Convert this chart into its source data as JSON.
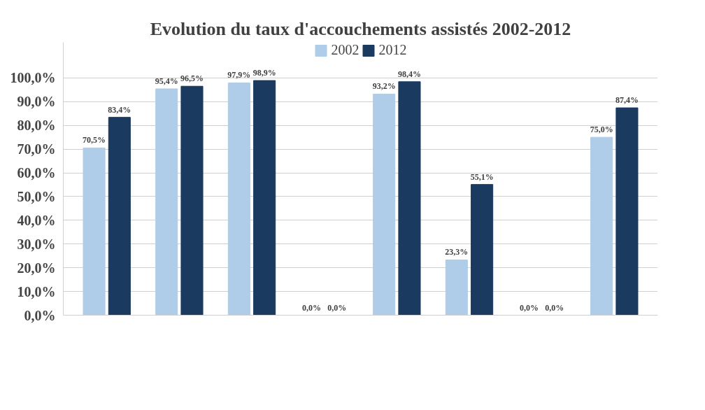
{
  "chart_data": {
    "type": "bar",
    "title": "Evolution du taux d'accouchements assistés 2002-2012",
    "categories": [
      null,
      null,
      null,
      null,
      null,
      null,
      null,
      null
    ],
    "series": [
      {
        "name": "2002",
        "color": "#afcce8",
        "values": [
          70.5,
          95.4,
          97.9,
          0,
          93.2,
          23.3,
          0,
          75.0
        ],
        "value_labels": [
          "70,5%",
          "95,4%",
          "97,9%",
          "0,0%",
          "93,2%",
          "23,3%",
          "0,0%",
          "75,0%"
        ]
      },
      {
        "name": "2012",
        "color": "#1b3a60",
        "values": [
          83.4,
          96.5,
          98.9,
          0,
          98.4,
          55.1,
          0,
          87.4
        ],
        "value_labels": [
          "83,4%",
          "96,5%",
          "98,9%",
          "0,0%",
          "98,4%",
          "55,1%",
          "0,0%",
          "87,4%"
        ]
      }
    ],
    "ylim": [
      0,
      115
    ],
    "yticks": [
      {
        "value": 0,
        "label": "0,0%"
      },
      {
        "value": 10,
        "label": "10,0%"
      },
      {
        "value": 20,
        "label": "20,0%"
      },
      {
        "value": 30,
        "label": "30,0%"
      },
      {
        "value": 40,
        "label": "40,0%"
      },
      {
        "value": 50,
        "label": "50,0%"
      },
      {
        "value": 60,
        "label": "60,0%"
      },
      {
        "value": 70,
        "label": "70,0%"
      },
      {
        "value": 80,
        "label": "80,0%"
      },
      {
        "value": 90,
        "label": "90,0%"
      },
      {
        "value": 100,
        "label": "100,0%"
      }
    ],
    "grid": "y",
    "legend": "top"
  }
}
